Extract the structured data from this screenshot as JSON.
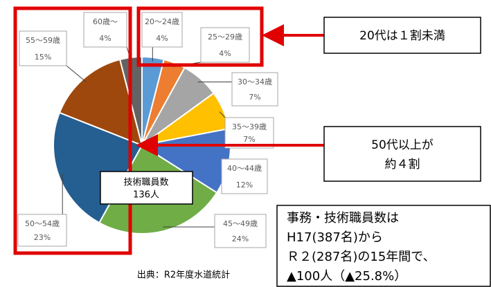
{
  "chart_data": {
    "type": "pie",
    "categories": [
      "20～24歳",
      "25～29歳",
      "30～34歳",
      "35～39歳",
      "40～44歳",
      "45～49歳",
      "50～54歳",
      "55～59歳",
      "60歳～"
    ],
    "values": [
      4,
      4,
      7,
      7,
      12,
      24,
      23,
      15,
      4
    ],
    "value_labels": [
      "4%",
      "4%",
      "7%",
      "7%",
      "12%",
      "24%",
      "23%",
      "15%",
      "4%"
    ],
    "colors": [
      "#5b9bd5",
      "#ed7d31",
      "#a5a5a5",
      "#ffc000",
      "#4472c4",
      "#70ad47",
      "#255e91",
      "#9e480e",
      "#636363"
    ],
    "center_label": [
      "技術職員数",
      "136人"
    ],
    "annotations": {
      "callout_20s": "20代は１割未満",
      "callout_50s": [
        "50代以上が",
        "約４割"
      ],
      "summary": [
        "事務・技術職員数は",
        "H17(387名)から",
        "Ｒ２(287名)の15年間で、",
        "▲100人（▲25.8%）"
      ],
      "source": "出典：R2年度水道統計"
    }
  }
}
